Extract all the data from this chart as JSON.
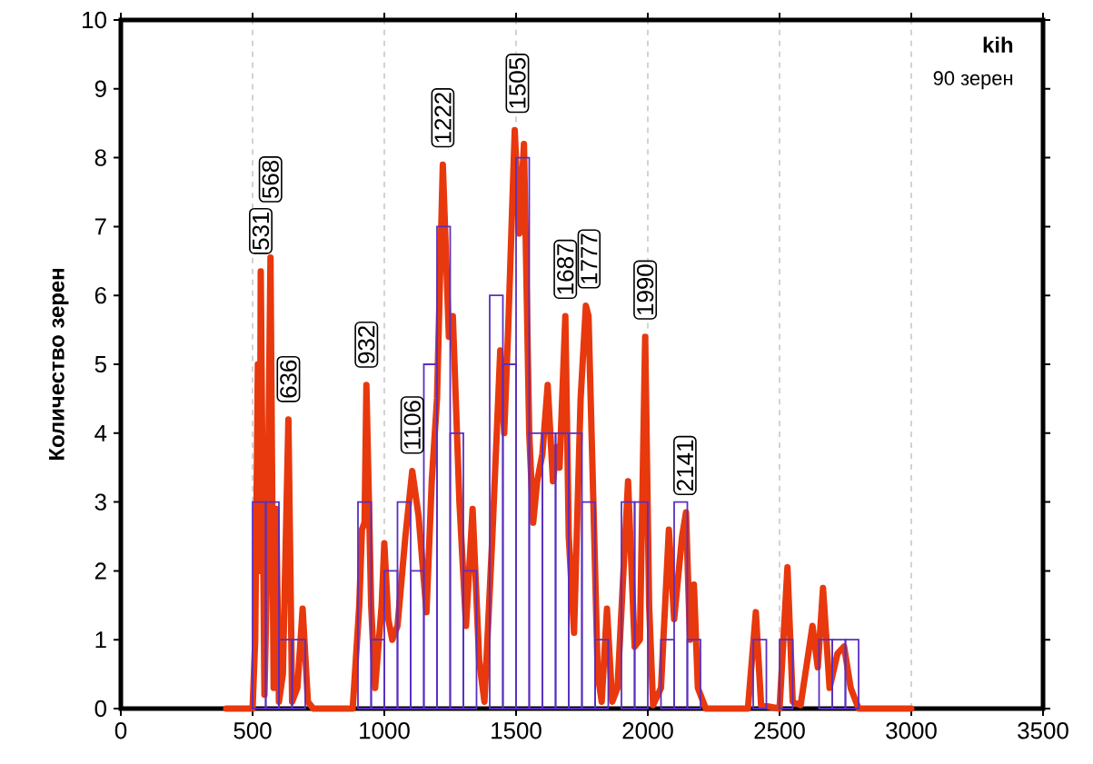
{
  "chart_data": {
    "type": "histogram",
    "title": "kih",
    "subtitle": "90 зерен",
    "ylabel": "Количество зерен",
    "xlim": [
      0,
      3500
    ],
    "ylim": [
      0,
      10
    ],
    "xticks": [
      0,
      500,
      1000,
      1500,
      2000,
      2500,
      3000,
      3500
    ],
    "yticks": [
      0,
      1,
      2,
      3,
      4,
      5,
      6,
      7,
      8,
      9,
      10
    ],
    "grid": "x",
    "series": [
      {
        "color": "#5a2fc0",
        "bins": [
          500,
          550,
          600,
          650,
          700,
          750,
          800,
          850,
          900,
          950,
          1000,
          1050,
          1100,
          1150,
          1200,
          1250,
          1300,
          1350,
          1400,
          1450,
          1500,
          1550,
          1600,
          1650,
          1700,
          1750,
          1800,
          1850,
          1900,
          1950,
          2000,
          2050,
          2100,
          2150,
          2200,
          2250,
          2300,
          2350,
          2400,
          2450,
          2500,
          2550,
          2600,
          2650,
          2700,
          2750,
          2800
        ],
        "values": [
          3,
          3,
          1,
          1,
          0,
          0,
          0,
          0,
          3,
          1,
          2,
          3,
          2,
          5,
          7,
          4,
          2,
          0,
          6,
          5,
          8,
          4,
          4,
          4,
          4,
          3,
          1,
          0,
          3,
          3,
          0,
          1,
          3,
          1,
          0,
          0,
          0,
          0,
          1,
          0,
          1,
          0,
          0,
          1,
          1,
          1
        ]
      },
      {
        "type": "line",
        "color": "#e8380d",
        "x": [
          400,
          500,
          510,
          520,
          527,
          531,
          545,
          555,
          568,
          580,
          590,
          600,
          615,
          636,
          650,
          670,
          690,
          710,
          730,
          880,
          905,
          915,
          925,
          932,
          950,
          965,
          990,
          1000,
          1015,
          1030,
          1050,
          1080,
          1106,
          1130,
          1160,
          1180,
          1200,
          1222,
          1245,
          1260,
          1285,
          1310,
          1335,
          1360,
          1380,
          1410,
          1440,
          1455,
          1470,
          1495,
          1512,
          1530,
          1550,
          1565,
          1580,
          1600,
          1620,
          1640,
          1655,
          1665,
          1687,
          1700,
          1720,
          1745,
          1765,
          1775,
          1790,
          1810,
          1825,
          1845,
          1865,
          1885,
          1925,
          1950,
          1970,
          1990,
          2005,
          2020,
          2050,
          2080,
          2100,
          2130,
          2145,
          2160,
          2175,
          2190,
          2220,
          2380,
          2410,
          2430,
          2500,
          2530,
          2550,
          2580,
          2625,
          2645,
          2665,
          2690,
          2720,
          2745,
          2770,
          2800,
          3000
        ],
        "values": [
          0,
          0,
          1,
          5.0,
          2,
          6.35,
          0.2,
          2,
          6.55,
          0.3,
          2.9,
          0.1,
          0.5,
          4.2,
          0.1,
          0.3,
          1.45,
          0.1,
          0,
          0,
          1.5,
          2.6,
          2.7,
          4.7,
          1.5,
          0.3,
          1.5,
          2.4,
          1.3,
          1.0,
          1.2,
          2.5,
          3.45,
          2.8,
          1.4,
          3.3,
          4.5,
          7.9,
          5.4,
          5.7,
          3.0,
          1.2,
          2.9,
          0.7,
          0.1,
          2.5,
          5.2,
          4.0,
          5.5,
          8.4,
          6.9,
          8.2,
          4.0,
          2.7,
          3.3,
          3.7,
          4.7,
          3.3,
          3.8,
          3.5,
          5.7,
          2.5,
          1.1,
          4.5,
          5.85,
          5.7,
          3.5,
          0.5,
          0.1,
          1.45,
          0.1,
          0.3,
          3.3,
          0.9,
          1.0,
          5.4,
          1.5,
          0.05,
          0.3,
          2.6,
          1.3,
          2.5,
          2.85,
          1.0,
          1.8,
          0.3,
          0,
          0,
          1.4,
          0.05,
          0,
          2.05,
          0.1,
          0.05,
          1.2,
          0.6,
          1.75,
          0.3,
          0.8,
          0.9,
          0.3,
          0,
          0
        ]
      }
    ],
    "annotations": [
      {
        "text": "531",
        "x": 531,
        "y": 6.35
      },
      {
        "text": "568",
        "x": 568,
        "y": 6.55
      },
      {
        "text": "636",
        "x": 636,
        "y": 4.2
      },
      {
        "text": "932",
        "x": 932,
        "y": 4.7
      },
      {
        "text": "1106",
        "x": 1106,
        "y": 3.45
      },
      {
        "text": "1222",
        "x": 1222,
        "y": 7.9
      },
      {
        "text": "1505",
        "x": 1505,
        "y": 8.4
      },
      {
        "text": "1687",
        "x": 1687,
        "y": 5.7
      },
      {
        "text": "1777",
        "x": 1777,
        "y": 5.85
      },
      {
        "text": "1990",
        "x": 1990,
        "y": 5.4
      },
      {
        "text": "2141",
        "x": 2141,
        "y": 2.85
      }
    ]
  }
}
